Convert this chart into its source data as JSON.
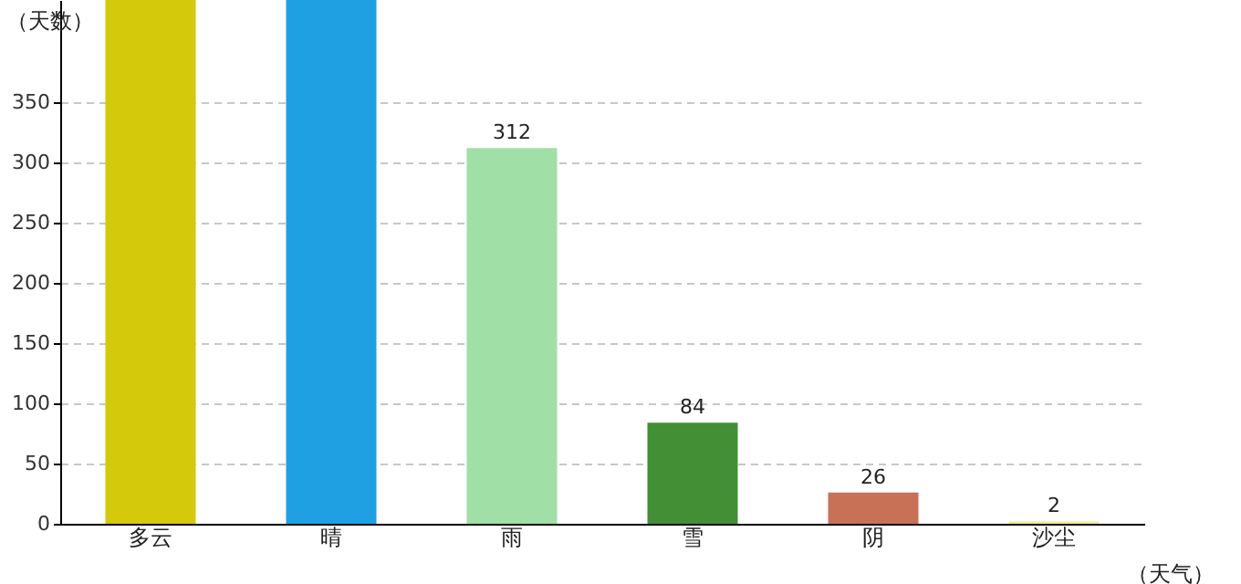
{
  "chart_data": {
    "type": "bar",
    "xlabel": "（天气）",
    "ylabel": "（天数）",
    "categories": [
      "多云",
      "晴",
      "雨",
      "雪",
      "阴",
      "沙尘"
    ],
    "values": [
      435,
      435,
      312,
      84,
      26,
      2
    ],
    "value_labels": [
      null,
      null,
      "312",
      "84",
      "26",
      "2"
    ],
    "colors": [
      "#d4c90a",
      "#1ea0e3",
      "#a0dfa6",
      "#428f35",
      "#c97156",
      "#f0eb9a"
    ],
    "ylim": [
      0,
      435
    ],
    "yticks": [
      0,
      50,
      100,
      150,
      200,
      250,
      300,
      350
    ],
    "grid": "y"
  }
}
